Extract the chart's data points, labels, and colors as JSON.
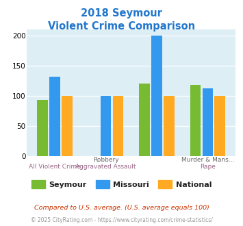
{
  "title_line1": "2018 Seymour",
  "title_line2": "Violent Crime Comparison",
  "title_color": "#2277cc",
  "groups": [
    {
      "seymour": 93,
      "missouri": 132,
      "national": 100
    },
    {
      "seymour": 0,
      "missouri": 100,
      "national": 100
    },
    {
      "seymour": 120,
      "missouri": 200,
      "national": 100
    },
    {
      "seymour": 118,
      "missouri": 112,
      "national": 100
    }
  ],
  "colors": {
    "seymour": "#77bb33",
    "missouri": "#3399ee",
    "national": "#ffaa22"
  },
  "ylim": [
    0,
    210
  ],
  "yticks": [
    0,
    50,
    100,
    150,
    200
  ],
  "bg_color": "#ddeef5",
  "top_xlabels": [
    "",
    "Robbery",
    "",
    "Murder & Mans..."
  ],
  "bot_xlabels": [
    "All Violent Crime",
    "Aggravated Assault",
    "",
    "Rape"
  ],
  "legend_labels": [
    "Seymour",
    "Missouri",
    "National"
  ],
  "footnote1": "Compared to U.S. average. (U.S. average equals 100)",
  "footnote2": "© 2025 CityRating.com - https://www.cityrating.com/crime-statistics/",
  "footnote1_color": "#cc3300",
  "footnote2_color": "#999999",
  "url_color": "#3399cc"
}
